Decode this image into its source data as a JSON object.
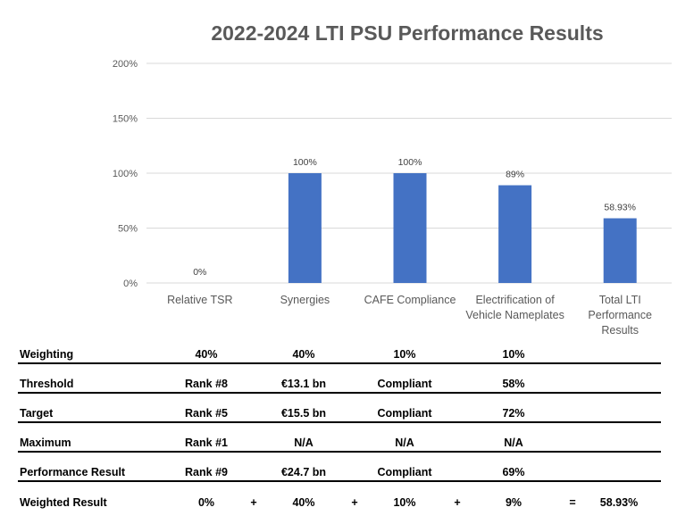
{
  "chart_data": {
    "type": "bar",
    "title": "2022-2024 LTI PSU Performance Results",
    "categories": [
      "Relative TSR",
      "Synergies",
      "CAFE Compliance",
      "Electrification of Vehicle Nameplates",
      "Total LTI Performance Results"
    ],
    "category_lines": [
      [
        "Relative TSR"
      ],
      [
        "Synergies"
      ],
      [
        "CAFE Compliance"
      ],
      [
        "Electrification of",
        "Vehicle Nameplates"
      ],
      [
        "Total LTI",
        "Performance",
        "Results"
      ]
    ],
    "values": [
      0,
      100,
      100,
      89,
      58.93
    ],
    "data_labels": [
      "0%",
      "100%",
      "100%",
      "89%",
      "58.93%"
    ],
    "ylim": [
      0,
      200
    ],
    "yticks": [
      0,
      50,
      100,
      150,
      200
    ],
    "ytick_labels": [
      "0%",
      "50%",
      "100%",
      "150%",
      "200%"
    ],
    "grid": true,
    "bar_color": "#4472C4",
    "xlabel": "",
    "ylabel": ""
  },
  "table": {
    "rows": [
      {
        "label": "Weighting",
        "cells": [
          "40%",
          "40%",
          "10%",
          "10%"
        ]
      },
      {
        "label": "Threshold",
        "cells": [
          "Rank #8",
          "€13.1 bn",
          "Compliant",
          "58%"
        ]
      },
      {
        "label": "Target",
        "cells": [
          "Rank #5",
          "€15.5 bn",
          "Compliant",
          "72%"
        ]
      },
      {
        "label": "Maximum",
        "cells": [
          "Rank #1",
          "N/A",
          "N/A",
          "N/A"
        ]
      },
      {
        "label": "Performance Result",
        "cells": [
          "Rank #9",
          "€24.7 bn",
          "Compliant",
          "69%"
        ]
      }
    ],
    "weighted": {
      "label": "Weighted Result",
      "cells": [
        "0%",
        "40%",
        "10%",
        "9%"
      ],
      "plus": "+",
      "equals": "=",
      "total": "58.93%"
    }
  }
}
